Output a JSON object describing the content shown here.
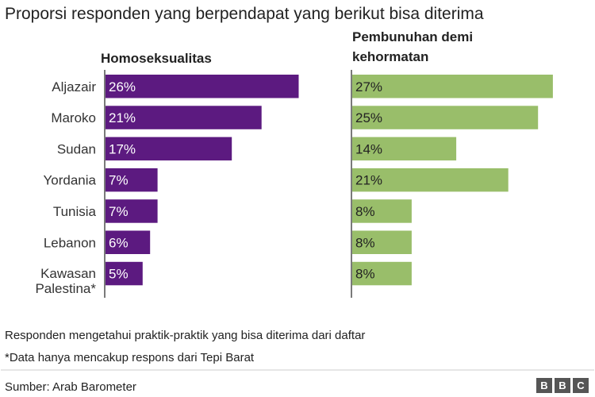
{
  "chart_data": {
    "type": "bar",
    "title": "Proporsi responden yang berpendapat yang berikut bisa diterima",
    "categories": [
      "Aljazair",
      "Maroko",
      "Sudan",
      "Yordania",
      "Tunisia",
      "Lebanon",
      "Kawasan Palestina*"
    ],
    "category_lines": [
      [
        "Aljazair"
      ],
      [
        "Maroko"
      ],
      [
        "Sudan"
      ],
      [
        "Yordania"
      ],
      [
        "Tunisia"
      ],
      [
        "Lebanon"
      ],
      [
        "Kawasan",
        "Palestina*"
      ]
    ],
    "unit": "%",
    "xlim": [
      0,
      30
    ],
    "series": [
      {
        "name": "Homoseksualitas",
        "name_lines": [
          "Homoseksualitas"
        ],
        "color": "#5c1a80",
        "label_color": "#ffffff",
        "values": [
          26,
          21,
          17,
          7,
          7,
          6,
          5
        ]
      },
      {
        "name": "Pembunuhan demi kehormatan",
        "name_lines": [
          "Pembunuhan demi",
          "kehormatan"
        ],
        "color": "#99be6a",
        "label_color": "#222222",
        "values": [
          27,
          25,
          14,
          21,
          8,
          8,
          8
        ]
      }
    ],
    "notes": [
      "Responden mengetahui praktik-praktik yang bisa diterima dari daftar",
      "*Data hanya mencakup respons dari Tepi Barat"
    ]
  },
  "footer": {
    "source": "Sumber: Arab Barometer",
    "logo_text": "BBC"
  }
}
